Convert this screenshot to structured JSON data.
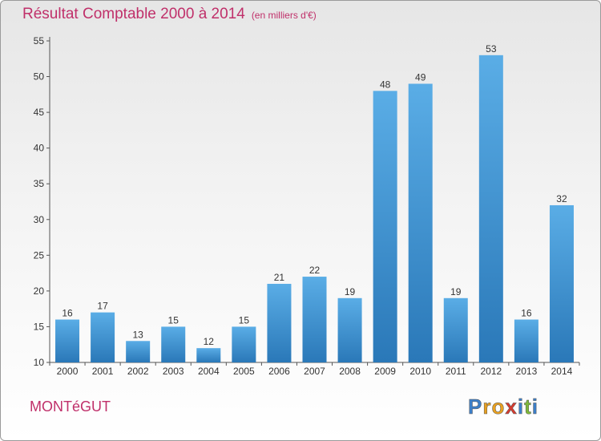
{
  "title": "Résultat Comptable 2000 à 2014",
  "subtitle": "(en milliers d'€)",
  "commune": "MONTéGUT",
  "logo": {
    "letters": [
      "P",
      "r",
      "o",
      "x",
      "i",
      "t",
      "i"
    ],
    "colors": [
      "#3c7fc9",
      "#e8a020",
      "#e8a020",
      "#d63b2f",
      "#3c7fc9",
      "#7fb83a",
      "#3c7fc9"
    ]
  },
  "colors": {
    "bar_top": "#5aade6",
    "bar_bottom": "#2a78b8",
    "title": "#c0306a"
  },
  "chart_data": {
    "type": "bar",
    "categories": [
      "2000",
      "2001",
      "2002",
      "2003",
      "2004",
      "2005",
      "2006",
      "2007",
      "2008",
      "2009",
      "2010",
      "2011",
      "2012",
      "2013",
      "2014"
    ],
    "values": [
      16,
      17,
      13,
      15,
      12,
      15,
      21,
      22,
      19,
      48,
      49,
      19,
      53,
      16,
      32
    ],
    "ylim": [
      10,
      55
    ],
    "yticks": [
      10,
      15,
      20,
      25,
      30,
      35,
      40,
      45,
      50,
      55
    ],
    "grid": false
  }
}
